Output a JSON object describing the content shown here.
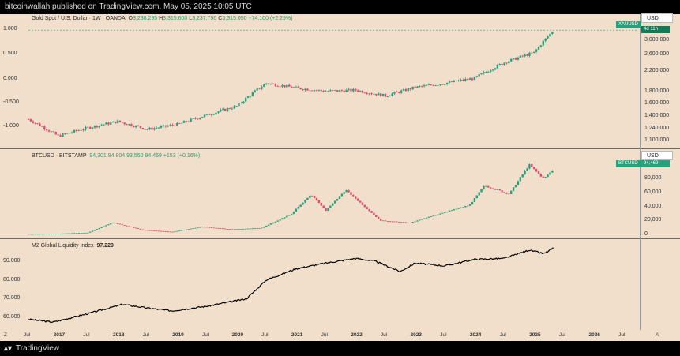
{
  "header": {
    "text": "bitcoinwallah published on TradingView.com, May 05, 2025 10:05 UTC"
  },
  "footer": {
    "brand": "TradingView",
    "logo_icon": "tradingview-logo-icon"
  },
  "time_axis": {
    "corner_left": "Z",
    "corner_right": "A",
    "labels": [
      "Jul",
      "2017",
      "Jul",
      "2018",
      "Jul",
      "2019",
      "Jul",
      "2020",
      "Jul",
      "2021",
      "Jul",
      "2022",
      "Jul",
      "2023",
      "Jul",
      "2024",
      "Jul",
      "2025",
      "Jul",
      "2026",
      "Jul"
    ]
  },
  "chart_data": [
    {
      "type": "candlestick",
      "title": "Gold Spot / U.S. Dollar · 1W · OANDA",
      "ohlc": {
        "open_label": "O",
        "open": "3,238.295",
        "high_label": "H",
        "high": "3,315.600",
        "low_label": "L",
        "low": "3,237.790",
        "close_label": "C",
        "close": "3,315.050",
        "change": "+74.100 (+2.29%)"
      },
      "currency": "USD",
      "left_axis_ticks": [
        "1.000",
        "0.500",
        "0.000",
        "-0.500",
        "-1.000"
      ],
      "right_axis_ticks": [
        "3,000,000",
        "2,600,000",
        "2,200,000",
        "1,800,000",
        "1,600,000",
        "1,400,000",
        "1,240,000",
        "1,100,000"
      ],
      "symbol_tag": "XAUUSD",
      "price_tag": "4d 11h",
      "log_scale": true,
      "x": [
        "2016-07",
        "2017-01",
        "2017-07",
        "2018-01",
        "2018-07",
        "2019-01",
        "2019-07",
        "2020-01",
        "2020-07",
        "2021-01",
        "2021-07",
        "2022-01",
        "2022-07",
        "2023-01",
        "2023-07",
        "2024-01",
        "2024-07",
        "2025-01",
        "2025-05"
      ],
      "y": [
        1360,
        1150,
        1250,
        1330,
        1230,
        1290,
        1420,
        1550,
        1950,
        1860,
        1800,
        1820,
        1720,
        1870,
        1950,
        2050,
        2400,
        2650,
        3315
      ]
    },
    {
      "type": "candlestick",
      "title": "BTCUSD · BITSTAMP",
      "ohlc": {
        "open": "94,301",
        "high": "94,804",
        "low": "93,550",
        "close": "94,469",
        "change": "+153 (+0.16%)"
      },
      "currency": "USD",
      "right_axis_ticks": [
        "80,000",
        "60,000",
        "40,000",
        "20,000",
        "0"
      ],
      "symbol_tag": "BTCUSD",
      "price_tag": "94,469",
      "x": [
        "2016-07",
        "2017-01",
        "2017-07",
        "2017-12",
        "2018-06",
        "2018-12",
        "2019-06",
        "2019-12",
        "2020-06",
        "2020-12",
        "2021-04",
        "2021-07",
        "2021-11",
        "2022-06",
        "2022-12",
        "2023-06",
        "2023-12",
        "2024-03",
        "2024-08",
        "2024-12",
        "2025-03",
        "2025-05"
      ],
      "y": [
        650,
        1000,
        2500,
        17000,
        6500,
        3500,
        11000,
        7200,
        9300,
        29000,
        58000,
        34000,
        64000,
        20000,
        16500,
        30000,
        42000,
        70000,
        58000,
        100000,
        80000,
        94469
      ]
    },
    {
      "type": "line",
      "title": "M2 Global Liquidity Index",
      "last_value": "97.229",
      "left_axis_ticks": [
        "90.000",
        "80.000",
        "70.000",
        "60.000"
      ],
      "x": [
        "2016-07",
        "2016-12",
        "2017-07",
        "2018-02",
        "2018-07",
        "2018-12",
        "2019-07",
        "2020-01",
        "2020-03",
        "2020-07",
        "2021-01",
        "2021-07",
        "2022-01",
        "2022-05",
        "2022-10",
        "2023-01",
        "2023-07",
        "2024-01",
        "2024-07",
        "2024-12",
        "2025-03",
        "2025-05"
      ],
      "y": [
        59,
        57.5,
        62,
        67,
        65,
        63.5,
        66,
        69,
        70,
        80,
        86,
        89,
        91.5,
        90,
        84.5,
        89,
        87.5,
        91,
        91.5,
        96,
        94,
        97.2
      ]
    }
  ]
}
